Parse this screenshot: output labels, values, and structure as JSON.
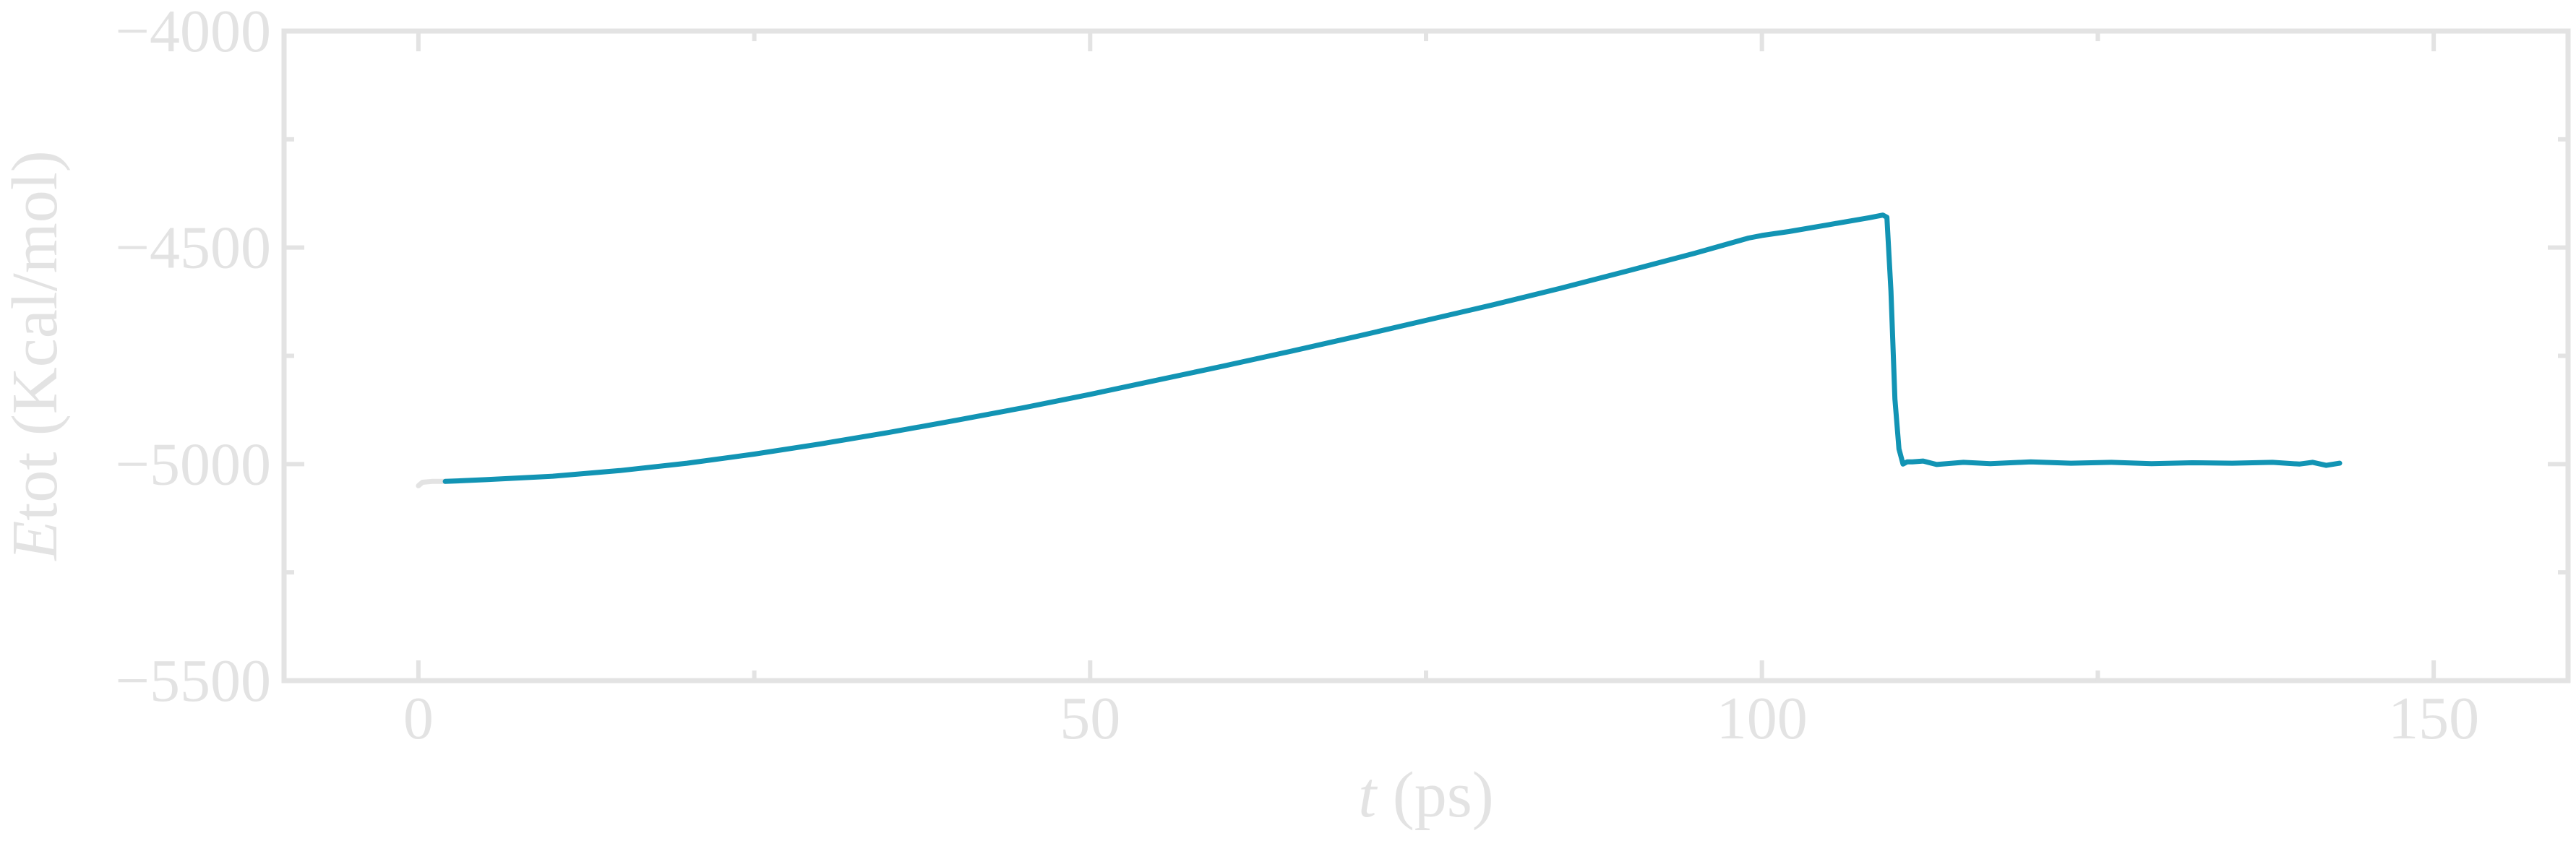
{
  "chart_data": {
    "type": "line",
    "xlabel_italic": "t",
    "xlabel_unit": " (ps)",
    "ylabel_italic": "E",
    "ylabel_sub": "tot",
    "ylabel_unit": " (Kcal/mol)",
    "xlim": [
      -10,
      160
    ],
    "ylim": [
      -5500,
      -4000
    ],
    "xticks": [
      0,
      50,
      100,
      150
    ],
    "xtick_labels": [
      "0",
      "50",
      "100",
      "150"
    ],
    "x_minor_ticks": [
      25,
      75,
      125
    ],
    "yticks": [
      -4000,
      -4500,
      -5000,
      -5500
    ],
    "ytick_labels": [
      "−4000",
      "−4500",
      "−5000",
      "−5500"
    ],
    "y_minor_ticks": [
      -4250,
      -4750,
      -5250
    ],
    "grid": false,
    "legend": "none",
    "colors": {
      "line": "#1294b4",
      "initial": "#e3e3e3",
      "axes": "#e3e3e3"
    },
    "series": [
      {
        "color_key": "initial",
        "x": [
          0,
          0.3,
          1.0,
          2.0
        ],
        "y": [
          -5050,
          -5042,
          -5040,
          -5040
        ]
      },
      {
        "color_key": "line",
        "x": [
          2,
          5,
          10,
          15,
          20,
          25,
          30,
          35,
          40,
          45,
          50,
          55,
          60,
          65,
          70,
          75,
          80,
          85,
          90,
          95,
          99,
          100,
          102,
          105,
          108,
          109,
          109.3,
          109.6,
          109.9,
          110.2,
          110.5,
          110.8,
          111.2,
          112,
          113,
          115,
          117,
          120,
          123,
          126,
          129,
          132,
          135,
          138,
          140,
          141,
          142,
          143
        ],
        "y": [
          -5040,
          -5036,
          -5028,
          -5015,
          -4998,
          -4977,
          -4953,
          -4927,
          -4899,
          -4870,
          -4839,
          -4806,
          -4773,
          -4739,
          -4704,
          -4668,
          -4632,
          -4594,
          -4554,
          -4513,
          -4478,
          -4472,
          -4463,
          -4447,
          -4431,
          -4425,
          -4430,
          -4600,
          -4850,
          -4965,
          -5000,
          -4995,
          -4995,
          -4993,
          -5001,
          -4996,
          -4999,
          -4995,
          -4998,
          -4996,
          -4999,
          -4997,
          -4998,
          -4996,
          -5000,
          -4996,
          -5003,
          -4998
        ]
      }
    ]
  }
}
